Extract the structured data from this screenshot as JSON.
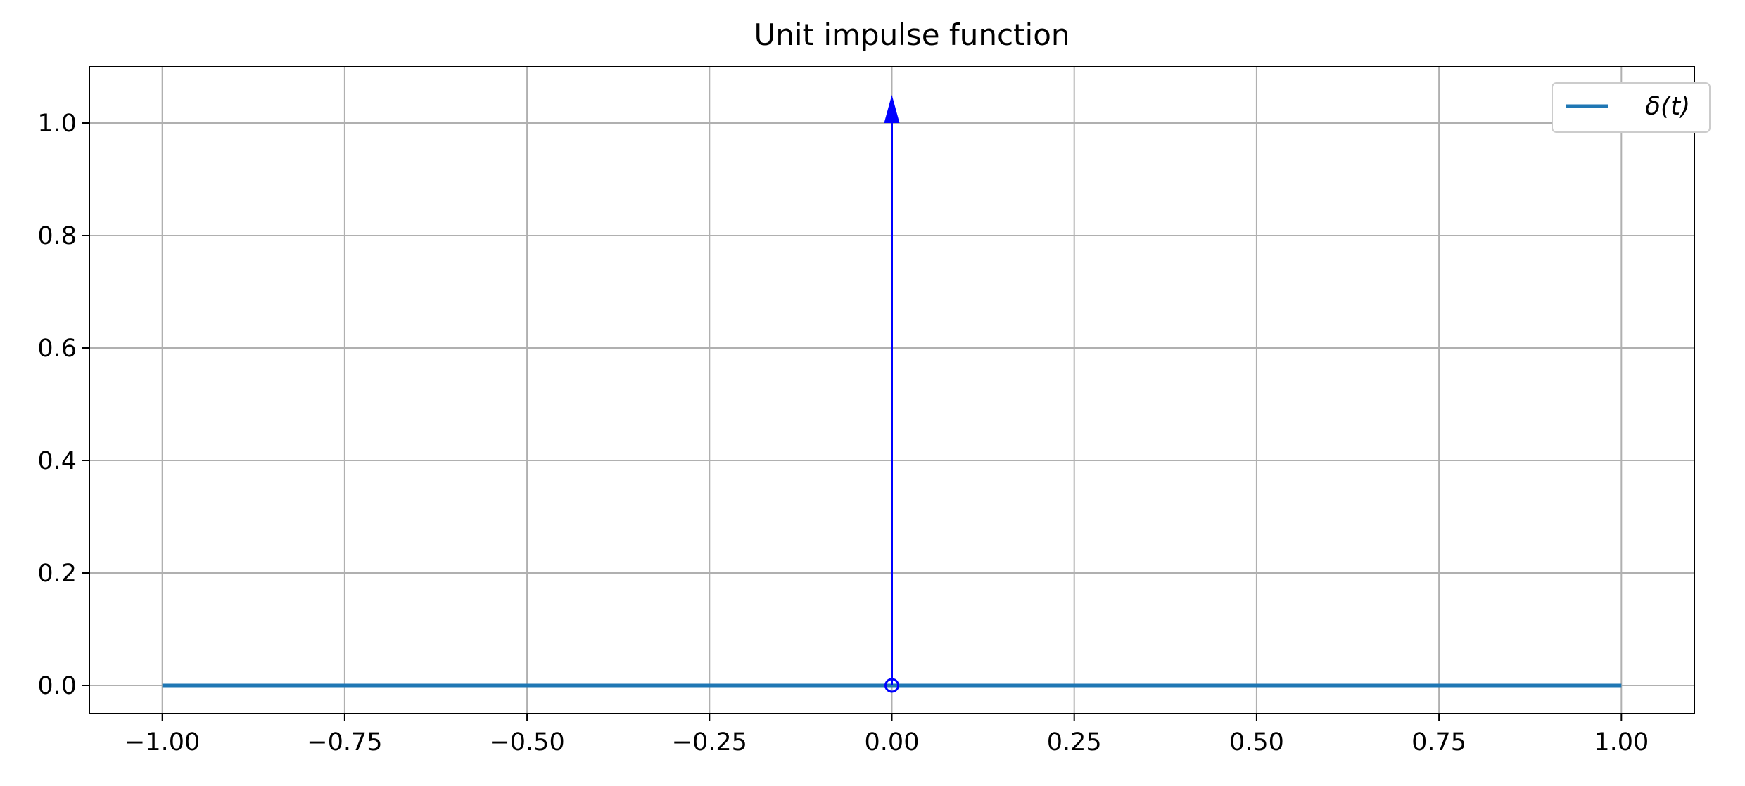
{
  "chart_data": {
    "type": "line",
    "title": "Unit impulse function",
    "xlabel": "",
    "ylabel": "",
    "xlim": [
      -1.1,
      1.1
    ],
    "ylim": [
      -0.05,
      1.1
    ],
    "xticks": [
      -1.0,
      -0.75,
      -0.5,
      -0.25,
      0.0,
      0.25,
      0.5,
      0.75,
      1.0
    ],
    "xtick_labels": [
      "−1.00",
      "−0.75",
      "−0.50",
      "−0.25",
      "0.00",
      "0.25",
      "0.50",
      "0.75",
      "1.00"
    ],
    "yticks": [
      0.0,
      0.2,
      0.4,
      0.6,
      0.8,
      1.0
    ],
    "ytick_labels": [
      "0.0",
      "0.2",
      "0.4",
      "0.6",
      "0.8",
      "1.0"
    ],
    "grid": true,
    "legend_position": "top-right",
    "series": [
      {
        "name": "δ(t)",
        "color": "#1f77b4",
        "x": [
          -1.0,
          1.0
        ],
        "y": [
          0.0,
          0.0
        ]
      }
    ],
    "impulse": {
      "x": 0.0,
      "height": 1.0,
      "arrow_tip": 1.05,
      "color": "#0000ff",
      "marker": "open-circle"
    }
  },
  "colors": {
    "grid": "#b0b0b0",
    "axes": "#000000",
    "line": "#1f77b4",
    "impulse": "#0000ff"
  }
}
